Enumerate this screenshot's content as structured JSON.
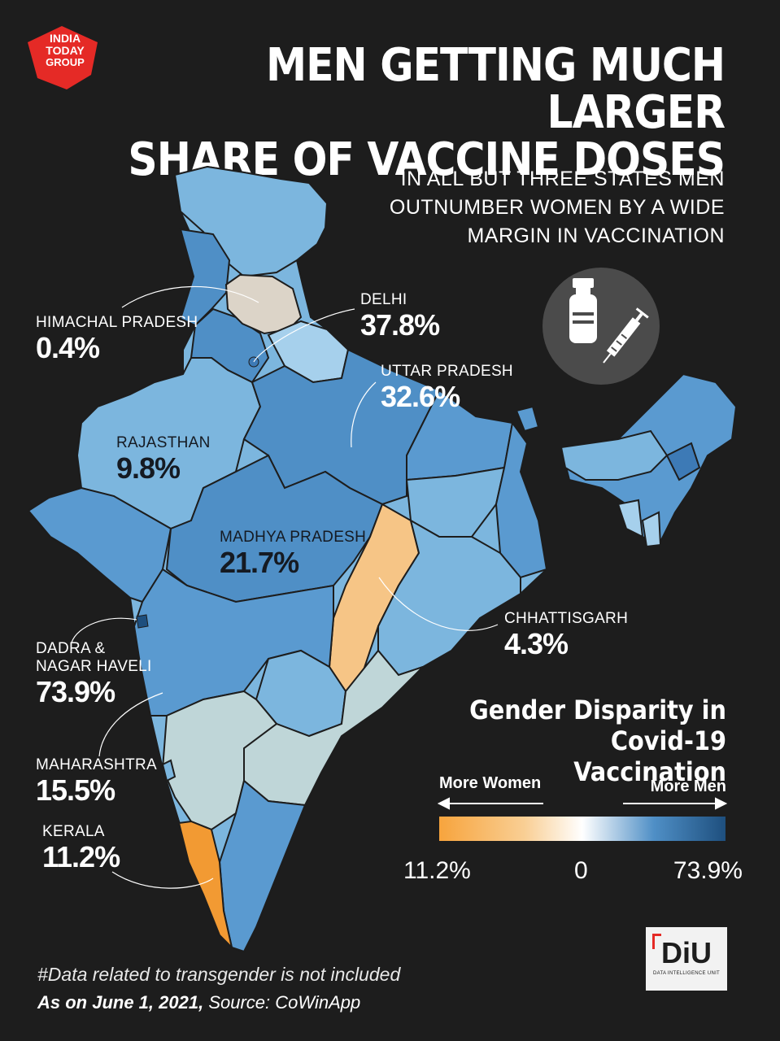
{
  "header": {
    "logo_lines": [
      "INDIA",
      "TODAY",
      "GROUP"
    ],
    "title_lines": [
      "MEN GETTING MUCH LARGER",
      "SHARE OF VACCINE DOSES"
    ],
    "subtitle_lines": [
      "IN ALL BUT THREE STATES MEN",
      "OUTNUMBER WOMEN BY A WIDE",
      "MARGIN IN VACCINATION"
    ]
  },
  "icon": {
    "name": "vaccine-syringe-icon"
  },
  "map": {
    "labels": [
      {
        "name": "HIMACHAL PRADESH",
        "value": "0.4%"
      },
      {
        "name": "DELHI",
        "value": "37.8%"
      },
      {
        "name": "UTTAR PRADESH",
        "value": "32.6%"
      },
      {
        "name": "RAJASTHAN",
        "value": "9.8%"
      },
      {
        "name": "MADHYA PRADESH",
        "value": "21.7%"
      },
      {
        "name": "CHHATTISGARH",
        "value": "4.3%"
      },
      {
        "name_lines": [
          "DADRA &",
          "NAGAR HAVELI"
        ],
        "value": "73.9%"
      },
      {
        "name": "MAHARASHTRA",
        "value": "15.5%"
      },
      {
        "name": "KERALA",
        "value": "11.2%"
      }
    ],
    "colors": {
      "more_women": "#f7a43d",
      "neutral": "#ffffff",
      "more_men": "#1e4f7e",
      "background": "#1d1d1d"
    }
  },
  "legend": {
    "title_lines": [
      "Gender Disparity in",
      "Covid-19 Vaccination"
    ],
    "left_label": "More Women",
    "right_label": "More Men",
    "ticks": [
      "11.2%",
      "0",
      "73.9%"
    ]
  },
  "footer": {
    "note": "#Data related to transgender is not included",
    "as_on": "As on June 1, 2021,",
    "source": "Source: CoWinApp",
    "diu_logo": "DiU",
    "diu_sub": "DATA INTELLIGENCE UNIT"
  }
}
